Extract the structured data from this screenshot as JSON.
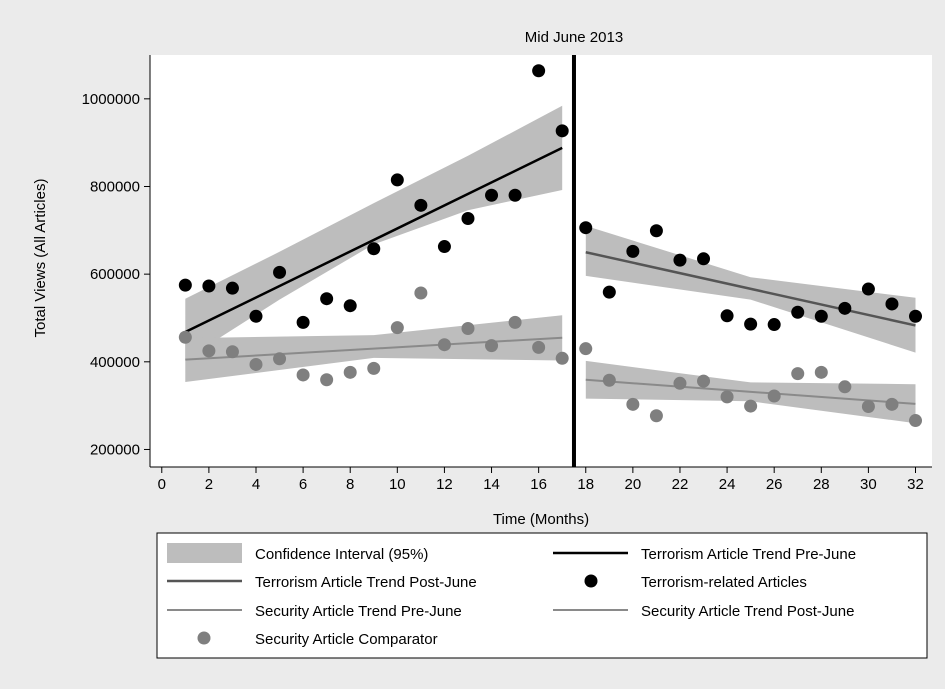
{
  "chart_data": {
    "type": "scatter",
    "annotation": "Mid June 2013",
    "break_x": 17.5,
    "xlabel": "Time (Months)",
    "ylabel": "Total Views (All Articles)",
    "xlim": [
      -0.5,
      32.7
    ],
    "ylim": [
      160000,
      1100000
    ],
    "xticks": [
      0,
      2,
      4,
      6,
      8,
      10,
      12,
      14,
      16,
      18,
      20,
      22,
      24,
      26,
      28,
      30,
      32
    ],
    "yticks": [
      200000,
      400000,
      600000,
      800000,
      1000000
    ],
    "grid": false,
    "legend_position": "bottom",
    "colors": {
      "background": "#ebebeb",
      "plot_area": "#ffffff",
      "ci_band": "#bdbdbd",
      "terror_pre": "#000000",
      "terror_post": "#555555",
      "terror_points": "#000000",
      "security_line": "#8a8a8a",
      "security_points": "#7f7f7f"
    },
    "series": {
      "terror_points": {
        "name": "Terrorism-related Articles",
        "x": [
          1,
          2,
          3,
          4,
          5,
          6,
          7,
          8,
          9,
          10,
          11,
          12,
          13,
          14,
          15,
          16,
          17,
          18,
          19,
          20,
          21,
          22,
          23,
          24,
          25,
          26,
          27,
          28,
          29,
          30,
          31,
          32
        ],
        "y": [
          575000,
          573000,
          568000,
          504000,
          604000,
          490000,
          544000,
          528000,
          658000,
          815000,
          757000,
          663000,
          727000,
          780000,
          780000,
          1064000,
          927000,
          706000,
          559000,
          652000,
          699000,
          632000,
          635000,
          505000,
          486000,
          485000,
          513000,
          504000,
          522000,
          566000,
          532000,
          504000
        ]
      },
      "security_points": {
        "name": "Security Article Comparator",
        "x": [
          1,
          2,
          3,
          4,
          5,
          6,
          7,
          8,
          9,
          10,
          11,
          12,
          13,
          14,
          15,
          16,
          17,
          18,
          19,
          20,
          21,
          22,
          23,
          24,
          25,
          26,
          27,
          28,
          29,
          30,
          31,
          32
        ],
        "y": [
          456000,
          425000,
          423000,
          394000,
          407000,
          370000,
          359000,
          376000,
          385000,
          478000,
          557000,
          439000,
          476000,
          437000,
          490000,
          433000,
          408000,
          430000,
          358000,
          303000,
          277000,
          351000,
          356000,
          320000,
          299000,
          322000,
          373000,
          376000,
          343000,
          298000,
          303000,
          266000
        ]
      },
      "terror_pre": {
        "name": "Terrorism Article Trend Pre-June",
        "x": [
          1,
          17
        ],
        "y": [
          468000,
          888000
        ],
        "ci_x": [
          1,
          5,
          9,
          13,
          17
        ],
        "ci_lower": [
          405000,
          542000,
          668000,
          746000,
          792000
        ],
        "ci_upper": [
          544000,
          651000,
          762000,
          870000,
          984000
        ]
      },
      "terror_post": {
        "name": "Terrorism Article Trend Post-June",
        "x": [
          18,
          32
        ],
        "y": [
          650000,
          483000
        ],
        "ci_x": [
          18,
          25,
          32
        ],
        "ci_lower": [
          596000,
          542000,
          421000
        ],
        "ci_upper": [
          710000,
          593000,
          546000
        ]
      },
      "security_pre": {
        "name": "Security Article Trend Pre-June",
        "x": [
          1,
          17
        ],
        "y": [
          405000,
          455000
        ],
        "ci_x": [
          1,
          9,
          17
        ],
        "ci_lower": [
          354000,
          409000,
          403000
        ],
        "ci_upper": [
          454000,
          461000,
          506000
        ]
      },
      "security_post": {
        "name": "Security Article Trend Post-June",
        "x": [
          18,
          32
        ],
        "y": [
          359000,
          304000
        ],
        "ci_x": [
          18,
          25,
          32
        ],
        "ci_lower": [
          316000,
          310000,
          260000
        ],
        "ci_upper": [
          402000,
          353000,
          349000
        ]
      }
    },
    "legend": [
      {
        "key": "ci",
        "label": "Confidence Interval (95%)"
      },
      {
        "key": "terror_pre",
        "label": "Terrorism Article Trend Pre-June"
      },
      {
        "key": "terror_post",
        "label": "Terrorism Article Trend Post-June"
      },
      {
        "key": "terror_points",
        "label": "Terrorism-related Articles"
      },
      {
        "key": "security_pre",
        "label": "Security Article Trend Pre-June"
      },
      {
        "key": "security_post",
        "label": "Security Article Trend Post-June"
      },
      {
        "key": "security_points",
        "label": "Security Article Comparator"
      }
    ]
  }
}
